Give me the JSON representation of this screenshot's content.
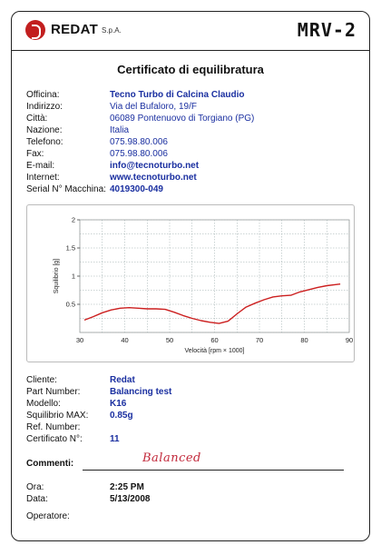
{
  "header": {
    "brand": "REDAT",
    "brand_suffix": "S.p.A.",
    "model": "MRV-2"
  },
  "title": "Certificato di equilibratura",
  "customer": [
    {
      "label": "Officina:",
      "value": "Tecno Turbo di Calcina Claudio",
      "bold": true
    },
    {
      "label": "Indirizzo:",
      "value": "Via del Bufaloro, 19/F",
      "bold": false
    },
    {
      "label": "Città:",
      "value": "06089 Pontenuovo di Torgiano (PG)",
      "bold": false
    },
    {
      "label": "Nazione:",
      "value": "Italia",
      "bold": false
    },
    {
      "label": "Telefono:",
      "value": "075.98.80.006",
      "bold": false
    },
    {
      "label": "Fax:",
      "value": "075.98.80.006",
      "bold": false
    },
    {
      "label": "E-mail:",
      "value": "info@tecnoturbo.net",
      "bold": true
    },
    {
      "label": "Internet:",
      "value": "www.tecnoturbo.net",
      "bold": true
    },
    {
      "label": "Serial N° Macchina:",
      "value": "4019300-049",
      "bold": true
    }
  ],
  "chart_data": {
    "type": "line",
    "title": "",
    "xlabel": "Velocità [rpm × 1000]",
    "ylabel": "Squilibrio [g]",
    "xlim": [
      30,
      90
    ],
    "ylim": [
      0,
      2
    ],
    "xticks": [
      30,
      40,
      50,
      60,
      70,
      80,
      90
    ],
    "yticks": [
      0.5,
      1,
      1.5,
      2
    ],
    "grid": true,
    "legend": "none",
    "series": [
      {
        "color": "#cc1f1f",
        "x": [
          31,
          33,
          35,
          37,
          39,
          41,
          43,
          45,
          47,
          49,
          51,
          53,
          55,
          57,
          59,
          61,
          63,
          65,
          67,
          69,
          71,
          73,
          75,
          77,
          79,
          81,
          83,
          85,
          87,
          88
        ],
        "y": [
          0.22,
          0.28,
          0.35,
          0.4,
          0.43,
          0.44,
          0.43,
          0.42,
          0.42,
          0.41,
          0.36,
          0.3,
          0.25,
          0.21,
          0.18,
          0.16,
          0.2,
          0.33,
          0.45,
          0.52,
          0.58,
          0.63,
          0.65,
          0.66,
          0.72,
          0.76,
          0.8,
          0.83,
          0.85,
          0.86
        ]
      }
    ]
  },
  "part": [
    {
      "label": "Cliente:",
      "value": "Redat"
    },
    {
      "label": "Part Number:",
      "value": "Balancing test"
    },
    {
      "label": "Modello:",
      "value": "K16"
    },
    {
      "label": "Squilibrio MAX:",
      "value": "0.85g"
    },
    {
      "label": "Ref. Number:",
      "value": ""
    },
    {
      "label": "Certificato N°:",
      "value": "11"
    }
  ],
  "comment": {
    "label": "Commenti:",
    "value": "Balanced"
  },
  "time": [
    {
      "label": "Ora:",
      "value": "2:25 PM"
    },
    {
      "label": "Data:",
      "value": "5/13/2008"
    },
    {
      "label": "Operatore:",
      "value": ""
    }
  ],
  "colors": {
    "brand": "#c21f1f",
    "value_text": "#1a2fa0",
    "curve": "#cc1f1f"
  }
}
